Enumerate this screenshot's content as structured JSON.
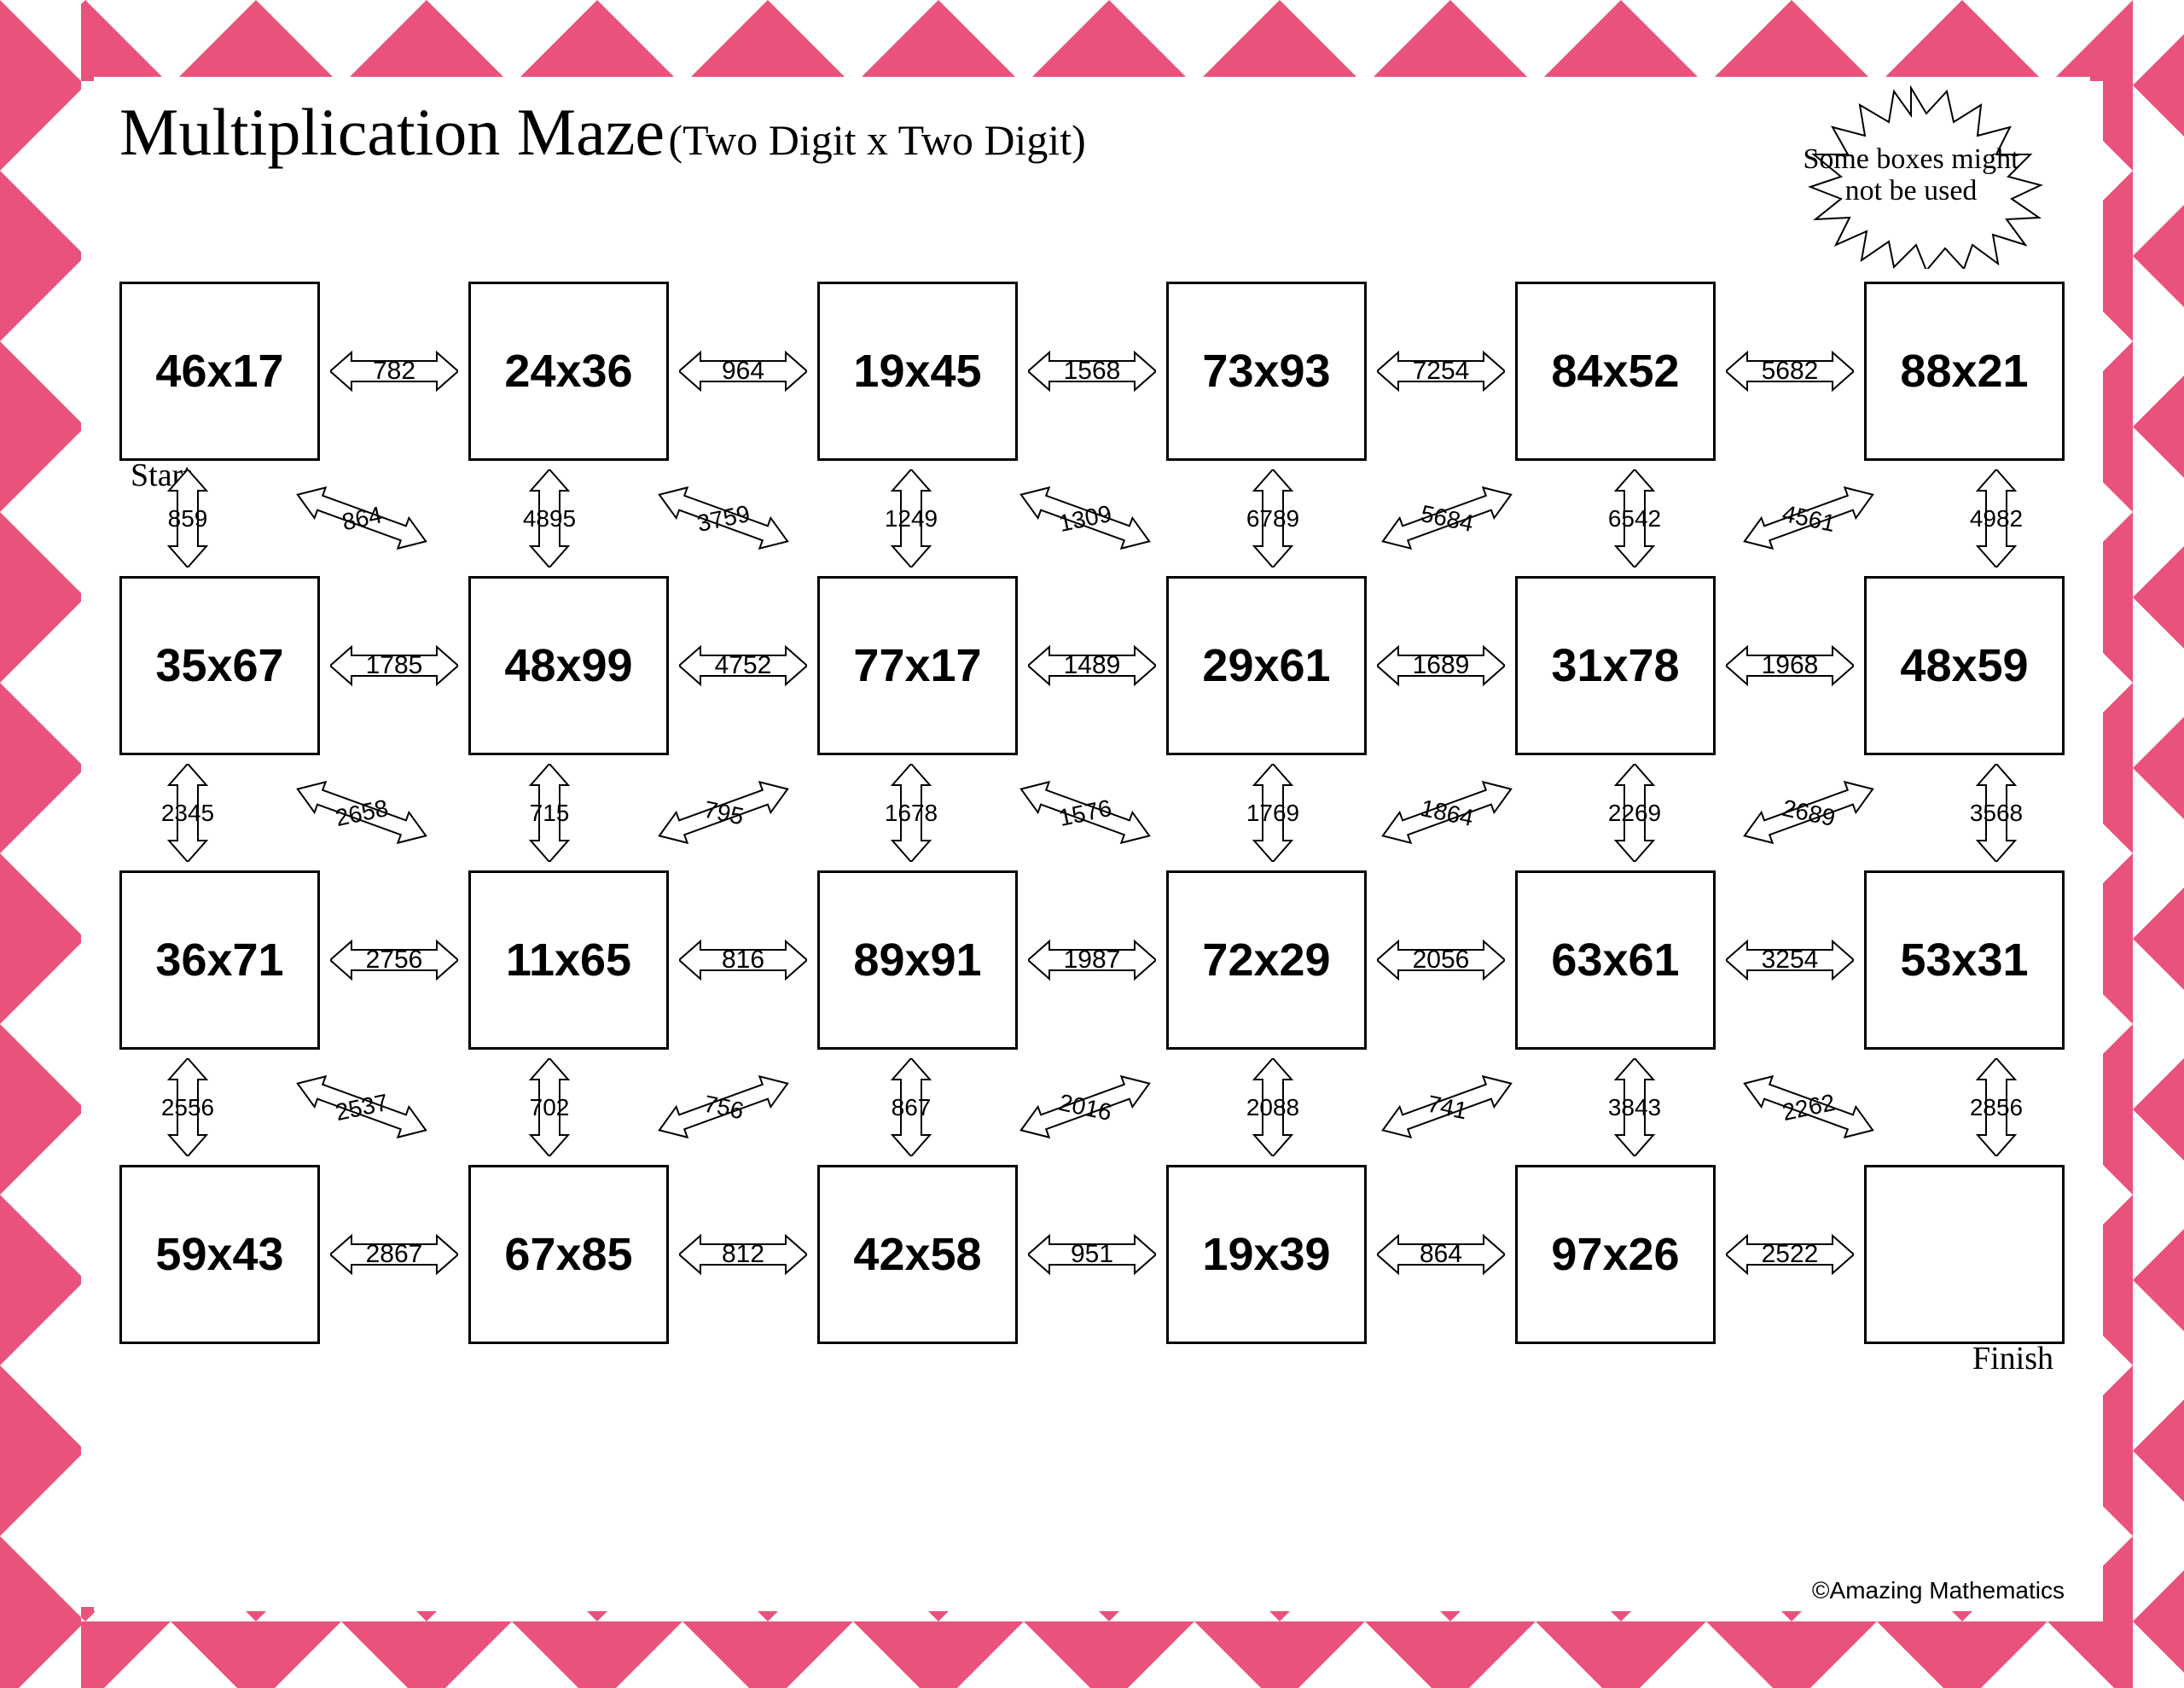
{
  "title_main": "Multiplication Maze",
  "title_sub": "(Two Digit x Two Digit)",
  "burst_text": "Some boxes might not be used",
  "start_label": "Start",
  "finish_label": "Finish",
  "footer": "©Amazing Mathematics",
  "colors": {
    "chevron": "#e9537b",
    "background": "#ffffff",
    "line": "#000000"
  },
  "boxes": [
    [
      "46x17",
      "24x36",
      "19x45",
      "73x93",
      "84x52",
      "88x21"
    ],
    [
      "35x67",
      "48x99",
      "77x17",
      "29x61",
      "31x78",
      "48x59"
    ],
    [
      "36x71",
      "11x65",
      "89x91",
      "72x29",
      "63x61",
      "53x31"
    ],
    [
      "59x43",
      "67x85",
      "42x58",
      "19x39",
      "97x26",
      ""
    ]
  ],
  "h_arrows": [
    [
      "782",
      "964",
      "1568",
      "7254",
      "5682"
    ],
    [
      "1785",
      "4752",
      "1489",
      "1689",
      "1968"
    ],
    [
      "2756",
      "816",
      "1987",
      "2056",
      "3254"
    ],
    [
      "2867",
      "812",
      "951",
      "864",
      "2522"
    ]
  ],
  "connectors": [
    {
      "v": [
        "859",
        "4895",
        "1249",
        "6789",
        "6542",
        "4982"
      ],
      "d": [
        "864",
        "3759",
        "1309",
        "5684",
        "4561"
      ],
      "dir": [
        "down",
        "down",
        "down",
        "up",
        "up"
      ]
    },
    {
      "v": [
        "2345",
        "715",
        "1678",
        "1769",
        "2269",
        "3568"
      ],
      "d": [
        "2658",
        "795",
        "1576",
        "1864",
        "2689"
      ],
      "dir": [
        "down",
        "up",
        "down",
        "up",
        "up"
      ]
    },
    {
      "v": [
        "2556",
        "702",
        "867",
        "2088",
        "3843",
        "2856"
      ],
      "d": [
        "2537",
        "756",
        "2016",
        "741",
        "2262"
      ],
      "dir": [
        "down",
        "up",
        "up",
        "up",
        "down"
      ]
    }
  ]
}
